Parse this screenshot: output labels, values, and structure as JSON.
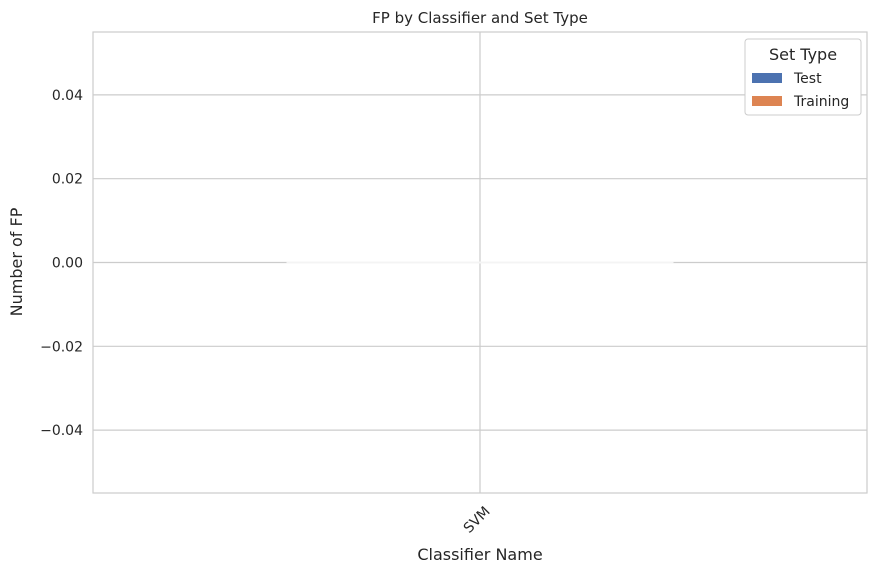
{
  "chart_data": {
    "type": "bar",
    "title": "FP by Classifier and Set Type",
    "xlabel": "Classifier Name",
    "ylabel": "Number of FP",
    "categories": [
      "SVM"
    ],
    "series": [
      {
        "name": "Test",
        "values": [
          0
        ],
        "color": "#4c72b0"
      },
      {
        "name": "Training",
        "values": [
          0
        ],
        "color": "#dd8452"
      }
    ],
    "ylim": [
      -0.055,
      0.055
    ],
    "yticks": [
      -0.04,
      -0.02,
      0.0,
      0.02,
      0.04
    ],
    "ytick_labels": [
      "−0.04",
      "−0.02",
      "0.00",
      "0.02",
      "0.04"
    ],
    "grid": true,
    "legend": {
      "title": "Set Type",
      "position": "top-right"
    }
  }
}
